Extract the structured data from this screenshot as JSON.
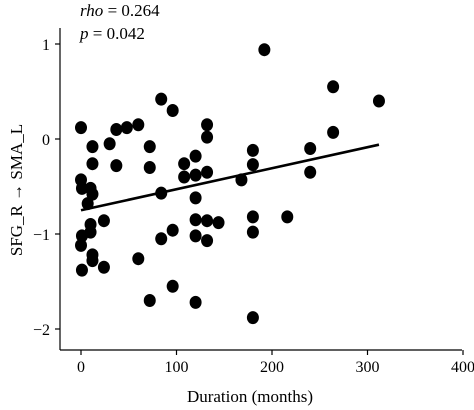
{
  "chart_data": {
    "type": "scatter",
    "title": "",
    "xlabel": "Duration (months)",
    "ylabel": "SFG_R → SMA_L",
    "xlim": [
      -10,
      400
    ],
    "ylim": [
      -2.15,
      1.1
    ],
    "x_ticks": [
      0,
      100,
      200,
      300,
      400
    ],
    "x_tick_labels": [
      "0",
      "100",
      "200",
      "300",
      "400"
    ],
    "y_ticks": [
      1,
      0,
      -1,
      -2
    ],
    "y_tick_labels": [
      "1",
      "0",
      "−1",
      "−2"
    ],
    "grid": false,
    "legend": "none",
    "annotations": {
      "rho_label": "rho",
      "rho_value": "= 0.264",
      "p_label": "p",
      "p_value": "= 0.042"
    },
    "trend_line": {
      "x": [
        0,
        312
      ],
      "y": [
        -0.75,
        -0.06
      ]
    },
    "points": [
      {
        "x": 0,
        "y": 0.12
      },
      {
        "x": 0,
        "y": -0.43
      },
      {
        "x": 1,
        "y": -0.52
      },
      {
        "x": 0,
        "y": -1.12
      },
      {
        "x": 1,
        "y": -1.02
      },
      {
        "x": 1,
        "y": -1.38
      },
      {
        "x": 7,
        "y": -0.68
      },
      {
        "x": 10,
        "y": -0.52
      },
      {
        "x": 12,
        "y": -0.58
      },
      {
        "x": 12,
        "y": -0.26
      },
      {
        "x": 12,
        "y": -0.08
      },
      {
        "x": 10,
        "y": -0.9
      },
      {
        "x": 10,
        "y": -0.98
      },
      {
        "x": 12,
        "y": -1.22
      },
      {
        "x": 12,
        "y": -1.28
      },
      {
        "x": 24,
        "y": -0.86
      },
      {
        "x": 24,
        "y": -1.35
      },
      {
        "x": 30,
        "y": -0.05
      },
      {
        "x": 37,
        "y": 0.1
      },
      {
        "x": 37,
        "y": -0.28
      },
      {
        "x": 48,
        "y": 0.12
      },
      {
        "x": 60,
        "y": 0.15
      },
      {
        "x": 60,
        "y": -1.26
      },
      {
        "x": 72,
        "y": -0.08
      },
      {
        "x": 72,
        "y": -0.3
      },
      {
        "x": 72,
        "y": -1.7
      },
      {
        "x": 84,
        "y": 0.42
      },
      {
        "x": 84,
        "y": -0.57
      },
      {
        "x": 84,
        "y": -1.05
      },
      {
        "x": 96,
        "y": 0.3
      },
      {
        "x": 96,
        "y": -0.96
      },
      {
        "x": 96,
        "y": -1.55
      },
      {
        "x": 108,
        "y": -0.26
      },
      {
        "x": 108,
        "y": -0.4
      },
      {
        "x": 120,
        "y": -0.18
      },
      {
        "x": 120,
        "y": -0.38
      },
      {
        "x": 120,
        "y": -0.62
      },
      {
        "x": 120,
        "y": -0.85
      },
      {
        "x": 120,
        "y": -1.02
      },
      {
        "x": 120,
        "y": -1.72
      },
      {
        "x": 132,
        "y": 0.15
      },
      {
        "x": 132,
        "y": 0.02
      },
      {
        "x": 132,
        "y": -0.35
      },
      {
        "x": 132,
        "y": -0.86
      },
      {
        "x": 132,
        "y": -1.07
      },
      {
        "x": 144,
        "y": -0.88
      },
      {
        "x": 168,
        "y": -0.43
      },
      {
        "x": 180,
        "y": -0.12
      },
      {
        "x": 180,
        "y": -0.27
      },
      {
        "x": 180,
        "y": -0.82
      },
      {
        "x": 180,
        "y": -0.98
      },
      {
        "x": 180,
        "y": -1.88
      },
      {
        "x": 192,
        "y": 0.94
      },
      {
        "x": 216,
        "y": -0.82
      },
      {
        "x": 240,
        "y": -0.1
      },
      {
        "x": 240,
        "y": -0.35
      },
      {
        "x": 264,
        "y": 0.55
      },
      {
        "x": 264,
        "y": 0.07
      },
      {
        "x": 312,
        "y": 0.4
      }
    ]
  }
}
